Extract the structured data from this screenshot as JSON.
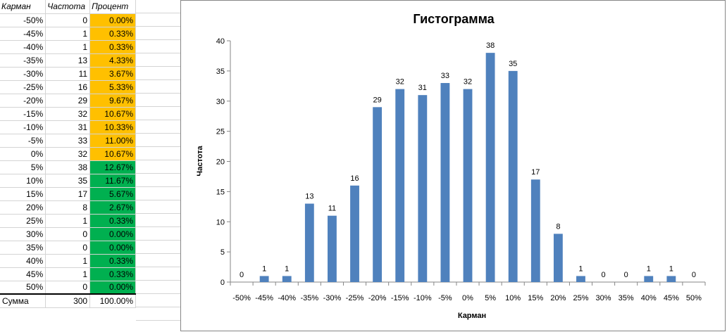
{
  "table": {
    "headers": [
      "Карман",
      "Частота",
      "Процент"
    ],
    "rows": [
      {
        "bin": "-50%",
        "freq": "0",
        "pct": "0.00%",
        "color": "orange"
      },
      {
        "bin": "-45%",
        "freq": "1",
        "pct": "0.33%",
        "color": "orange"
      },
      {
        "bin": "-40%",
        "freq": "1",
        "pct": "0.33%",
        "color": "orange"
      },
      {
        "bin": "-35%",
        "freq": "13",
        "pct": "4.33%",
        "color": "orange"
      },
      {
        "bin": "-30%",
        "freq": "11",
        "pct": "3.67%",
        "color": "orange"
      },
      {
        "bin": "-25%",
        "freq": "16",
        "pct": "5.33%",
        "color": "orange"
      },
      {
        "bin": "-20%",
        "freq": "29",
        "pct": "9.67%",
        "color": "orange"
      },
      {
        "bin": "-15%",
        "freq": "32",
        "pct": "10.67%",
        "color": "orange"
      },
      {
        "bin": "-10%",
        "freq": "31",
        "pct": "10.33%",
        "color": "orange"
      },
      {
        "bin": "-5%",
        "freq": "33",
        "pct": "11.00%",
        "color": "orange"
      },
      {
        "bin": "0%",
        "freq": "32",
        "pct": "10.67%",
        "color": "orange"
      },
      {
        "bin": "5%",
        "freq": "38",
        "pct": "12.67%",
        "color": "green"
      },
      {
        "bin": "10%",
        "freq": "35",
        "pct": "11.67%",
        "color": "green"
      },
      {
        "bin": "15%",
        "freq": "17",
        "pct": "5.67%",
        "color": "green"
      },
      {
        "bin": "20%",
        "freq": "8",
        "pct": "2.67%",
        "color": "green"
      },
      {
        "bin": "25%",
        "freq": "1",
        "pct": "0.33%",
        "color": "green"
      },
      {
        "bin": "30%",
        "freq": "0",
        "pct": "0.00%",
        "color": "green"
      },
      {
        "bin": "35%",
        "freq": "0",
        "pct": "0.00%",
        "color": "green"
      },
      {
        "bin": "40%",
        "freq": "1",
        "pct": "0.33%",
        "color": "green"
      },
      {
        "bin": "45%",
        "freq": "1",
        "pct": "0.33%",
        "color": "green"
      },
      {
        "bin": "50%",
        "freq": "0",
        "pct": "0.00%",
        "color": "green"
      }
    ],
    "total": {
      "label": "Сумма",
      "freq": "300",
      "pct": "100.00%"
    }
  },
  "colors": {
    "orange": "#ffc000",
    "green": "#00b050",
    "bar": "#4f81bd"
  },
  "chart_data": {
    "type": "bar",
    "title": "Гистограмма",
    "xlabel": "Карман",
    "ylabel": "Частота",
    "categories": [
      "-50%",
      "-45%",
      "-40%",
      "-35%",
      "-30%",
      "-25%",
      "-20%",
      "-15%",
      "-10%",
      "-5%",
      "0%",
      "5%",
      "10%",
      "15%",
      "20%",
      "25%",
      "30%",
      "35%",
      "40%",
      "45%",
      "50%"
    ],
    "values": [
      0,
      1,
      1,
      13,
      11,
      16,
      29,
      32,
      31,
      33,
      32,
      38,
      35,
      17,
      8,
      1,
      0,
      0,
      1,
      1,
      0
    ],
    "ylim": [
      0,
      40
    ],
    "yticks": [
      0,
      5,
      10,
      15,
      20,
      25,
      30,
      35,
      40
    ],
    "grid": false,
    "legend": "none",
    "data_labels": true
  }
}
